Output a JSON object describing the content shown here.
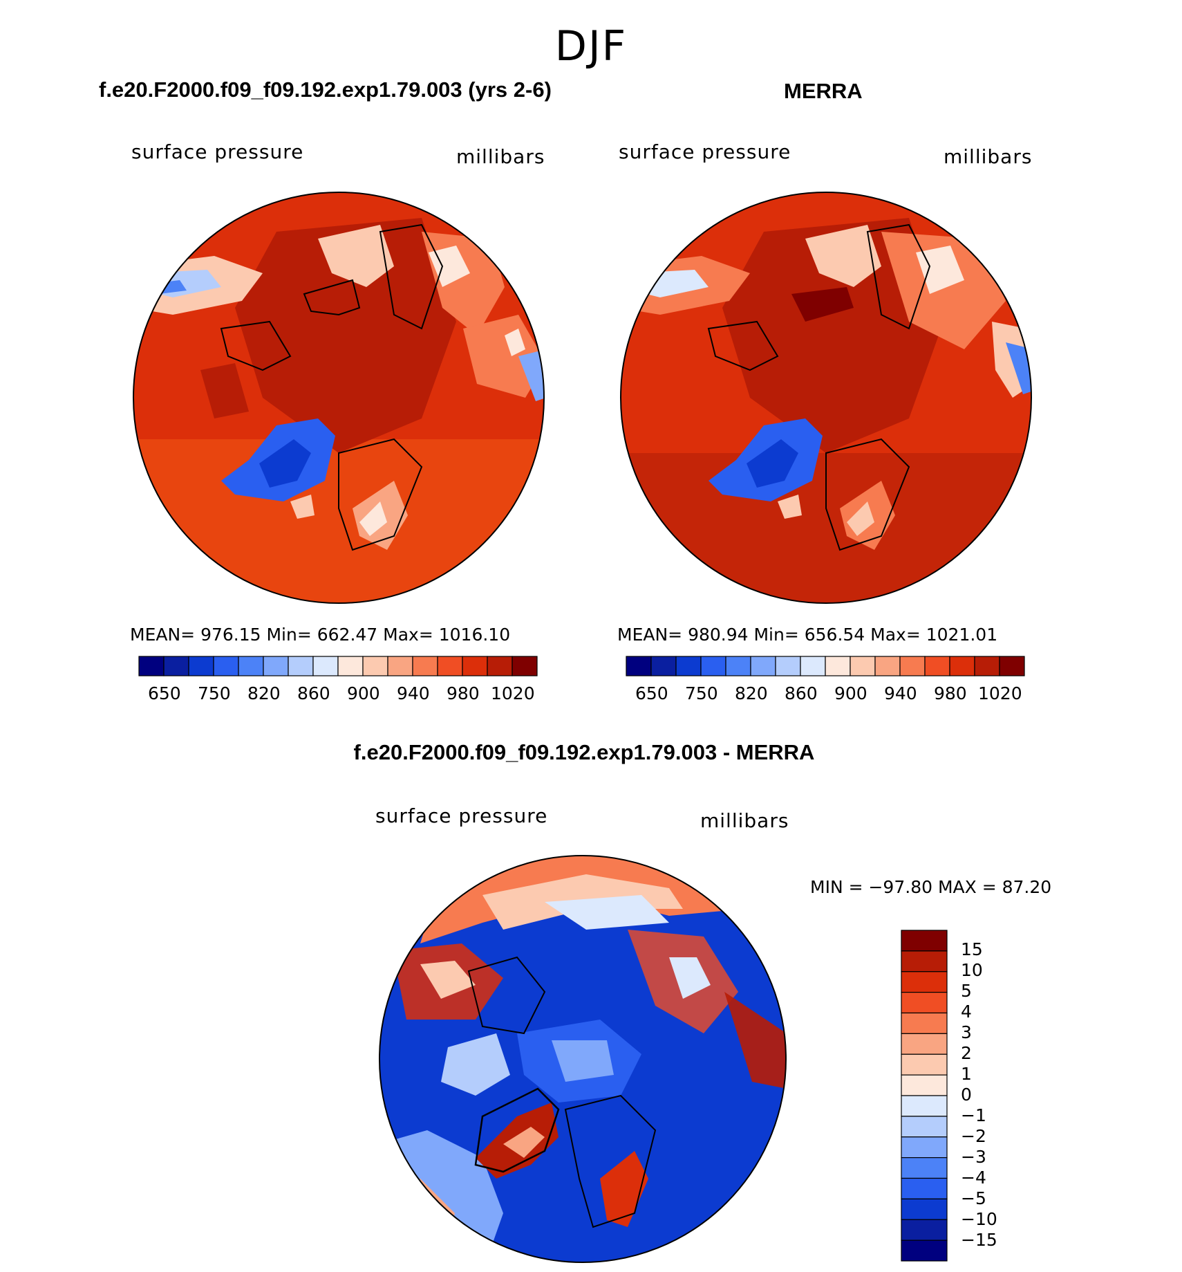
{
  "main_title": "DJF",
  "panels": [
    {
      "title": "f.e20.F2000.f09_f09.192.exp1.79.003 (yrs 2-6)",
      "left_label": "surface pressure",
      "right_label": "millibars",
      "stats": "MEAN= 976.15   Min= 662.47   Max= 1016.10",
      "colorbar_labels": [
        "650",
        "750",
        "820",
        "860",
        "900",
        "940",
        "980",
        "1020"
      ]
    },
    {
      "title": "MERRA",
      "left_label": "surface pressure",
      "right_label": "millibars",
      "stats": "MEAN= 980.94   Min= 656.54   Max= 1021.01",
      "colorbar_labels": [
        "650",
        "750",
        "820",
        "860",
        "900",
        "940",
        "980",
        "1020"
      ]
    }
  ],
  "difference": {
    "title": "f.e20.F2000.f09_f09.192.exp1.79.003 - MERRA",
    "left_label": "surface pressure",
    "right_label": "millibars",
    "stats": "MIN = −97.80 MAX =   87.20",
    "colorbar_labels": [
      "15",
      "10",
      "5",
      "4",
      "3",
      "2",
      "1",
      "0",
      "−1",
      "−2",
      "−3",
      "−4",
      "−5",
      "−10",
      "−15"
    ]
  },
  "colors": {
    "abs_scale": [
      "#00007f",
      "#0a1fa0",
      "#0c3bd0",
      "#2a5ff0",
      "#4c82f7",
      "#80a8fb",
      "#b4cdfc",
      "#dce9fd",
      "#fde8dc",
      "#fccab0",
      "#f9a582",
      "#f77b50",
      "#f04e24",
      "#dc2f0a",
      "#b71d06",
      "#7f0000"
    ],
    "diff_scale": [
      "#7f0000",
      "#b71d06",
      "#dc2f0a",
      "#f04e24",
      "#f77b50",
      "#f9a582",
      "#fccab0",
      "#fde8dc",
      "#dce9fd",
      "#b4cdfc",
      "#80a8fb",
      "#4c82f7",
      "#2a5ff0",
      "#0c3bd0",
      "#0a1fa0",
      "#00007f"
    ]
  }
}
